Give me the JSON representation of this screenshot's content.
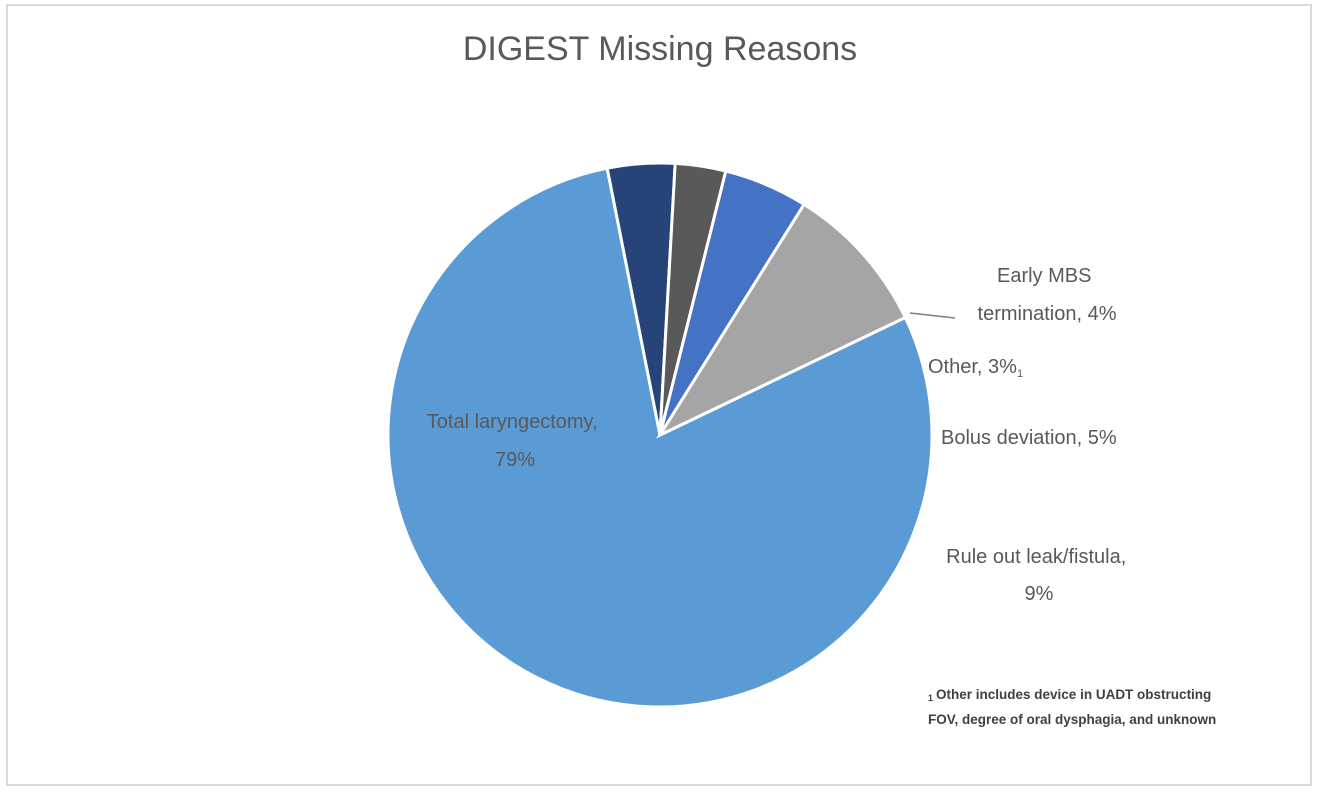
{
  "chart_data": {
    "type": "pie",
    "title": "DIGEST Missing Reasons",
    "slices": [
      {
        "label": "Total laryngectomy",
        "value": 79,
        "display": "79%",
        "color": "#5b9bd5"
      },
      {
        "label": "Early MBS termination",
        "value": 4,
        "display": "4%",
        "color": "#264478"
      },
      {
        "label": "Other",
        "value": 3,
        "display": "3%",
        "marker": "1",
        "color": "#595959"
      },
      {
        "label": "Bolus deviation",
        "value": 5,
        "display": "5%",
        "color": "#4472c4"
      },
      {
        "label": "Rule out leak/fistula",
        "value": 9,
        "display": "9%",
        "color": "#a5a5a5"
      }
    ],
    "footnote_marker": "1",
    "footnote": "Other includes device in  UADT obstructing FOV, degree of oral dysphagia, and unknown"
  }
}
